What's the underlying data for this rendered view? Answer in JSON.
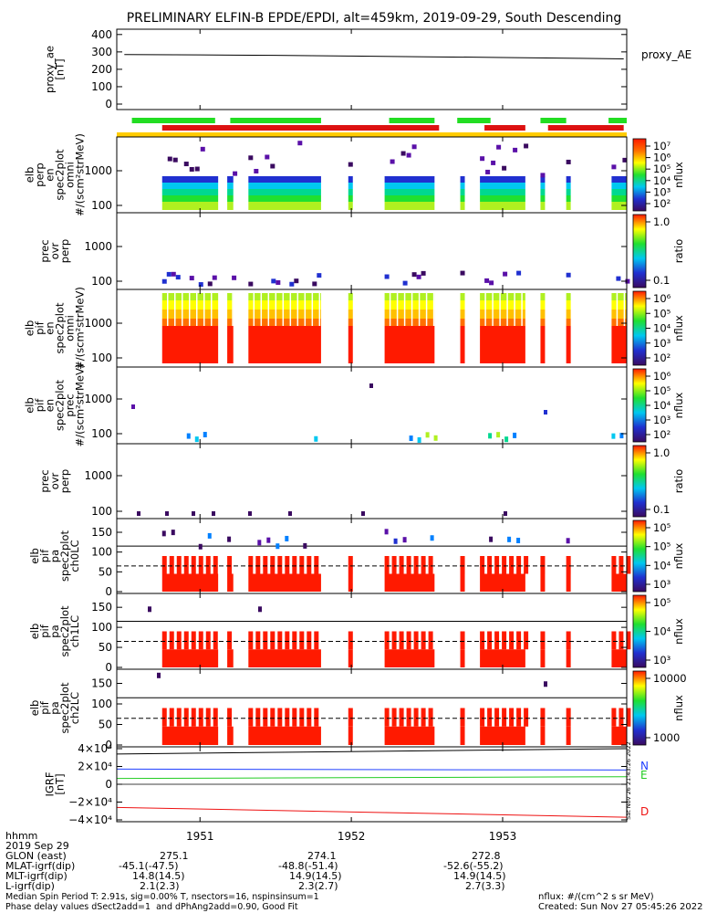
{
  "title": "PRELIMINARY ELFIN-B EPDE/EPDI, alt=459km, 2019-09-29, South Descending",
  "colors": {
    "rainbow": [
      "#3a0a60",
      "#5a10a8",
      "#2030d0",
      "#0080ff",
      "#00c8f0",
      "#00d890",
      "#20e030",
      "#b0f020",
      "#ffff00",
      "#ffc000",
      "#ff7000",
      "#ff1a00"
    ],
    "green": "#22dd22",
    "red": "#dd1111",
    "yellow": "#ffcc00",
    "bn": "#2040ff",
    "be": "#22cc22",
    "bd": "#ee1111"
  },
  "chart_data": [
    {
      "type": "line",
      "name": "proxy_ae",
      "ylabel_lines": [
        "proxy_ae",
        "[nT]"
      ],
      "yticks": [
        "400",
        "300",
        "200",
        "100",
        "0"
      ],
      "ylim": [
        0,
        420
      ],
      "legend": "proxy_AE",
      "x": [
        1950.5,
        1951.0,
        1951.5,
        1952.0,
        1952.5,
        1953.0,
        1953.5,
        1953.8
      ],
      "y": [
        285,
        283,
        280,
        276,
        272,
        268,
        263,
        260
      ]
    },
    {
      "type": "bars",
      "name": "status-bars",
      "green_segments": [
        [
          1950.55,
          1951.1
        ],
        [
          1951.2,
          1951.8
        ],
        [
          1952.25,
          1952.55
        ],
        [
          1952.7,
          1952.92
        ],
        [
          1953.25,
          1953.42
        ],
        [
          1953.7,
          1953.82
        ]
      ],
      "red_segments": [
        [
          1950.75,
          1952.58
        ],
        [
          1952.88,
          1953.15
        ],
        [
          1953.3,
          1953.8
        ]
      ],
      "yellow_segment": [
        1950.45,
        1953.82
      ]
    },
    {
      "type": "heatmap",
      "name": "elb-perp-spec",
      "ylabel_lines": [
        "elb",
        "perp",
        "en",
        "spec2plot",
        "omni",
        "#/(scm²strMeV)"
      ],
      "yticks": [
        "1000",
        "100"
      ],
      "colorbar": {
        "ticks": [
          "10⁷",
          "10⁶",
          "10⁵",
          "10⁴",
          "10³",
          "10²"
        ],
        "label": "nflux"
      }
    },
    {
      "type": "heatmap",
      "name": "prec-ovr-perp-top",
      "ylabel_lines": [
        "prec",
        "ovr",
        "perp"
      ],
      "yticks": [
        "1000",
        "100"
      ],
      "colorbar": {
        "ticks": [
          "1.0",
          "0.1"
        ],
        "label": "ratio"
      }
    },
    {
      "type": "heatmap",
      "name": "elb-perp-ion",
      "ylabel_lines": [
        "elb",
        "pif",
        "en",
        "spec2plot",
        "omni",
        "#/(scm²strMeV)"
      ],
      "yticks": [
        "1000",
        "100"
      ],
      "colorbar": {
        "ticks": [
          "10⁶",
          "10⁵",
          "10⁴",
          "10³",
          "10²"
        ],
        "label": "nflux"
      }
    },
    {
      "type": "heatmap",
      "name": "elb-prec-ion",
      "ylabel_lines": [
        "elb",
        "pif",
        "en",
        "spec2plot",
        "prec",
        "#/(scm²strMeV)"
      ],
      "yticks": [
        "1000",
        "100"
      ],
      "colorbar": {
        "ticks": [
          "10⁶",
          "10⁵",
          "10⁴",
          "10³",
          "10²"
        ],
        "label": "nflux"
      }
    },
    {
      "type": "heatmap",
      "name": "prec-ovr-perp-bottom",
      "ylabel_lines": [
        "prec",
        "ovr",
        "perp"
      ],
      "yticks": [
        "1000",
        "100"
      ],
      "colorbar": {
        "ticks": [
          "1.0",
          "0.1"
        ],
        "label": "ratio"
      }
    },
    {
      "type": "heatmap",
      "name": "pa-ch0",
      "ylabel_lines": [
        "elb",
        "pif",
        "pa",
        "spec2plot",
        "ch0LC"
      ],
      "yticks": [
        "150",
        "100",
        "50",
        "0"
      ],
      "colorbar": {
        "ticks": [
          "10⁵",
          "10⁵",
          "10⁴",
          "10³"
        ],
        "label": "nflux"
      }
    },
    {
      "type": "heatmap",
      "name": "pa-ch1",
      "ylabel_lines": [
        "elb",
        "pif",
        "pa",
        "spec2plot",
        "ch1LC"
      ],
      "yticks": [
        "150",
        "100",
        "50",
        "0"
      ],
      "colorbar": {
        "ticks": [
          "10⁵",
          "10⁴",
          "10³"
        ],
        "label": "nflux"
      }
    },
    {
      "type": "heatmap",
      "name": "pa-ch2",
      "ylabel_lines": [
        "elb",
        "pif",
        "pa",
        "spec2plot",
        "ch2LC"
      ],
      "yticks": [
        "150",
        "100",
        "50",
        "0"
      ],
      "colorbar": {
        "ticks": [
          "10000",
          "1000"
        ],
        "label": "nflux"
      }
    },
    {
      "type": "line",
      "name": "igrf",
      "ylabel_lines": [
        "IGRF",
        "[nT]"
      ],
      "yticks": [
        "4×10⁴",
        "2×10⁴",
        "0",
        "−2×10⁴",
        "−4×10⁴"
      ],
      "ylim": [
        -40000,
        40000
      ],
      "x": [
        1950.45,
        1953.82
      ],
      "series": [
        {
          "name": "",
          "y": [
            34000,
            40000
          ]
        },
        {
          "name": "N",
          "y": [
            17000,
            16000
          ]
        },
        {
          "name": "E",
          "y": [
            6500,
            8500
          ]
        },
        {
          "name": "D",
          "y": [
            -26000,
            -37000
          ]
        }
      ],
      "legend": [
        "N",
        "E",
        "D"
      ]
    }
  ],
  "xaxis": {
    "ticks": [
      "1951",
      "1952",
      "1953"
    ],
    "values": [
      1951,
      1952,
      1953
    ],
    "range": [
      1950.45,
      1953.82
    ]
  },
  "side_stamp": "Sat Nov 26 21:43:26 2022",
  "footer": {
    "rows": [
      {
        "label": "hhmm",
        "values": [
          "",
          "",
          ""
        ]
      },
      {
        "label": "2019 Sep 29",
        "values": [
          "",
          "",
          ""
        ]
      },
      {
        "label": "GLON (east)",
        "values": [
          "275.1",
          "274.1",
          "272.8"
        ]
      },
      {
        "label": "MLAT-igrf(dip)",
        "values": [
          "-45.1(-47.5)",
          "-48.8(-51.4)",
          "-52.6(-55.2)"
        ]
      },
      {
        "label": "MLT-igrf(dip)",
        "values": [
          "14.8(14.5)",
          "14.9(14.5)",
          "14.9(14.5)"
        ]
      },
      {
        "label": "L-igrf(dip)",
        "values": [
          "2.1(2.3)",
          "2.3(2.7)",
          "2.7(3.3)"
        ]
      }
    ],
    "line1": "Median Spin Period T: 2.91s, sig=0.00% T, nsectors=16, nspinsinsum=1",
    "line2": "Phase delay values dSect2add=1  and dPhAng2add=0.90, Good Fit",
    "right1": "nflux: #/(cm^2 s sr MeV)",
    "right2": "Created: Sun Nov 27 05:45:26 2022"
  }
}
